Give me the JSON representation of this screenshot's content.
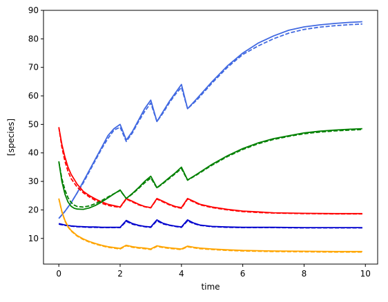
{
  "chart_data": {
    "type": "line",
    "xlabel": "time",
    "ylabel": "[species]",
    "xlim": [
      -0.5,
      10.4
    ],
    "ylim": [
      1,
      90
    ],
    "xticks": [
      0,
      2,
      4,
      6,
      8,
      10
    ],
    "yticks": [
      10,
      20,
      30,
      40,
      50,
      60,
      70,
      80,
      90
    ],
    "grid": false,
    "series": [
      {
        "color": "#4169e1",
        "linestyle": "solid",
        "x": [
          0,
          0.2,
          0.4,
          0.6,
          0.8,
          1.0,
          1.2,
          1.4,
          1.6,
          1.8,
          2.0,
          2.2,
          2.4,
          2.6,
          2.8,
          3.0,
          3.2,
          3.4,
          3.6,
          3.8,
          4.0,
          4.2,
          4.5,
          5.0,
          5.5,
          6.0,
          6.5,
          7.0,
          7.5,
          8.0,
          8.5,
          9.0,
          9.5,
          9.9
        ],
        "y": [
          17,
          19.5,
          22.5,
          26,
          30,
          34,
          38,
          42,
          46,
          48.5,
          50,
          44.5,
          47.5,
          51.5,
          55.5,
          58.5,
          51,
          54.5,
          58,
          61,
          64,
          55.5,
          59,
          65,
          70.5,
          75,
          78.5,
          81,
          83,
          84.2,
          84.9,
          85.4,
          85.8,
          86
        ]
      },
      {
        "color": "#4169e1",
        "linestyle": "dashed",
        "x": [
          0,
          0.2,
          0.4,
          0.6,
          0.8,
          1.0,
          1.2,
          1.4,
          1.6,
          1.8,
          2.0,
          2.2,
          2.4,
          2.6,
          2.8,
          3.0,
          3.2,
          3.4,
          3.6,
          3.8,
          4.0,
          4.2,
          4.5,
          5.0,
          5.5,
          6.0,
          6.5,
          7.0,
          7.5,
          8.0,
          8.5,
          9.0,
          9.5,
          9.9
        ],
        "y": [
          17,
          19.5,
          22.5,
          26,
          29.5,
          33.5,
          37.5,
          41.5,
          45,
          48,
          49,
          44,
          47,
          51,
          54.5,
          57.5,
          51,
          54,
          57.5,
          60.5,
          63,
          55.5,
          58.5,
          64.5,
          70,
          74.5,
          77.5,
          80,
          82,
          83.3,
          84.1,
          84.6,
          85,
          85.2
        ]
      },
      {
        "color": "#ff0000",
        "linestyle": "solid",
        "x": [
          0,
          0.1,
          0.2,
          0.3,
          0.4,
          0.6,
          0.8,
          1.0,
          1.2,
          1.4,
          1.6,
          1.8,
          2.0,
          2.2,
          2.4,
          2.6,
          2.8,
          3.0,
          3.2,
          3.4,
          3.6,
          3.8,
          4.0,
          4.2,
          4.4,
          4.6,
          5.0,
          5.5,
          6.0,
          6.5,
          7.0,
          8.0,
          9.0,
          9.9
        ],
        "y": [
          49,
          43,
          38.5,
          35,
          32.5,
          29,
          26.5,
          25,
          23.8,
          22.8,
          22,
          21.5,
          21,
          24,
          23,
          22,
          21.2,
          20.8,
          24,
          23,
          22,
          21.2,
          20.8,
          24,
          23,
          22,
          21,
          20.2,
          19.6,
          19.3,
          19,
          18.8,
          18.7,
          18.7
        ]
      },
      {
        "color": "#ff0000",
        "linestyle": "dashed",
        "x": [
          0,
          0.1,
          0.2,
          0.3,
          0.4,
          0.6,
          0.8,
          1.0,
          1.2,
          1.4,
          1.6,
          1.8,
          2.0,
          2.2,
          2.4,
          2.6,
          2.8,
          3.0,
          3.2,
          3.4,
          3.6,
          3.8,
          4.0,
          4.2,
          4.4,
          4.6,
          5.0,
          5.5,
          6.0,
          6.5,
          7.0,
          8.0,
          9.0,
          9.9
        ],
        "y": [
          49,
          42,
          37,
          33.5,
          31,
          28,
          26,
          24.5,
          23.3,
          22.3,
          21.6,
          21.2,
          20.9,
          23.8,
          22.8,
          21.8,
          21.1,
          20.7,
          23.8,
          22.8,
          21.8,
          21,
          20.6,
          23.8,
          22.8,
          21.8,
          20.8,
          20,
          19.4,
          19.1,
          18.9,
          18.7,
          18.6,
          18.6
        ]
      },
      {
        "color": "#008000",
        "linestyle": "solid",
        "x": [
          0,
          0.1,
          0.2,
          0.3,
          0.4,
          0.5,
          0.6,
          0.8,
          1.0,
          1.2,
          1.4,
          1.6,
          1.8,
          2.0,
          2.2,
          2.4,
          2.6,
          2.8,
          3.0,
          3.2,
          3.4,
          3.6,
          3.8,
          4.0,
          4.2,
          4.5,
          5.0,
          5.5,
          6.0,
          6.5,
          7.0,
          7.5,
          8.0,
          8.5,
          9.0,
          9.5,
          9.9
        ],
        "y": [
          37,
          30,
          25.5,
          22.8,
          21.3,
          20.6,
          20.3,
          20.2,
          20.7,
          21.6,
          22.8,
          24.2,
          25.6,
          27,
          24,
          25.8,
          27.8,
          30,
          31.8,
          27.8,
          29.5,
          31.3,
          33,
          35,
          30.5,
          32.5,
          36,
          39,
          41.5,
          43.5,
          45,
          46,
          47,
          47.6,
          48,
          48.3,
          48.5
        ]
      },
      {
        "color": "#008000",
        "linestyle": "dashed",
        "x": [
          0,
          0.1,
          0.2,
          0.3,
          0.4,
          0.5,
          0.6,
          0.8,
          1.0,
          1.2,
          1.4,
          1.6,
          1.8,
          2.0,
          2.2,
          2.4,
          2.6,
          2.8,
          3.0,
          3.2,
          3.4,
          3.6,
          3.8,
          4.0,
          4.2,
          4.5,
          5.0,
          5.5,
          6.0,
          6.5,
          7.0,
          7.5,
          8.0,
          8.5,
          9.0,
          9.5,
          9.9
        ],
        "y": [
          37,
          31,
          27,
          24.3,
          22.6,
          21.7,
          21.2,
          21,
          21.4,
          22.2,
          23.3,
          24.5,
          25.7,
          26.8,
          24,
          25.6,
          27.5,
          29.5,
          31.2,
          27.7,
          29.3,
          31,
          32.7,
          34.5,
          30.4,
          32.3,
          35.7,
          38.7,
          41.2,
          43.2,
          44.7,
          45.8,
          46.7,
          47.3,
          47.7,
          48,
          48.2
        ]
      },
      {
        "color": "#0000cd",
        "linestyle": "solid",
        "x": [
          0,
          0.2,
          0.4,
          0.6,
          0.8,
          1.0,
          1.2,
          1.4,
          1.6,
          1.8,
          2.0,
          2.2,
          2.4,
          2.6,
          2.8,
          3.0,
          3.2,
          3.4,
          3.6,
          3.8,
          4.0,
          4.2,
          4.4,
          4.6,
          5.0,
          5.5,
          6.0,
          7.0,
          8.0,
          9.0,
          9.9
        ],
        "y": [
          15.2,
          14.7,
          14.4,
          14.2,
          14.1,
          14,
          14,
          13.9,
          13.9,
          13.9,
          13.9,
          16.3,
          15.2,
          14.6,
          14.2,
          14,
          16.5,
          15.3,
          14.7,
          14.3,
          14,
          16.5,
          15.4,
          14.7,
          14.2,
          14,
          13.9,
          13.9,
          13.8,
          13.8,
          13.8
        ]
      },
      {
        "color": "#0000cd",
        "linestyle": "dashed",
        "x": [
          0,
          0.2,
          0.4,
          0.6,
          0.8,
          1.0,
          1.2,
          1.4,
          1.6,
          1.8,
          2.0,
          2.2,
          2.4,
          2.6,
          2.8,
          3.0,
          3.2,
          3.4,
          3.6,
          3.8,
          4.0,
          4.2,
          4.4,
          4.6,
          5.0,
          5.5,
          6.0,
          7.0,
          8.0,
          9.0,
          9.9
        ],
        "y": [
          15,
          14.6,
          14.3,
          14.1,
          14,
          13.9,
          13.9,
          13.8,
          13.8,
          13.8,
          13.8,
          16,
          15,
          14.5,
          14.1,
          13.9,
          16.2,
          15.1,
          14.6,
          14.2,
          13.9,
          16.2,
          15.2,
          14.6,
          14.1,
          13.9,
          13.8,
          13.8,
          13.7,
          13.7,
          13.7
        ]
      },
      {
        "color": "#ffa500",
        "linestyle": "solid",
        "x": [
          0,
          0.1,
          0.2,
          0.3,
          0.4,
          0.6,
          0.8,
          1.0,
          1.2,
          1.4,
          1.6,
          1.8,
          2.0,
          2.2,
          2.4,
          2.6,
          2.8,
          3.0,
          3.2,
          3.4,
          3.6,
          3.8,
          4.0,
          4.2,
          4.4,
          4.6,
          5.0,
          5.5,
          6.0,
          7.0,
          8.0,
          9.0,
          9.9
        ],
        "y": [
          24,
          19.5,
          16.3,
          14.2,
          12.8,
          11,
          9.8,
          8.9,
          8.2,
          7.6,
          7.1,
          6.8,
          6.5,
          7.6,
          7.1,
          6.8,
          6.6,
          6.3,
          7.4,
          7,
          6.7,
          6.5,
          6.3,
          7.3,
          6.9,
          6.6,
          6.3,
          6,
          5.8,
          5.6,
          5.5,
          5.4,
          5.4
        ]
      },
      {
        "color": "#ffa500",
        "linestyle": "dashed",
        "x": [
          0,
          0.1,
          0.2,
          0.3,
          0.4,
          0.6,
          0.8,
          1.0,
          1.2,
          1.4,
          1.6,
          1.8,
          2.0,
          2.2,
          2.4,
          2.6,
          2.8,
          3.0,
          3.2,
          3.4,
          3.6,
          3.8,
          4.0,
          4.2,
          4.4,
          4.6,
          5.0,
          5.5,
          6.0,
          7.0,
          8.0,
          9.0,
          9.9
        ],
        "y": [
          24,
          19.3,
          16.1,
          14,
          12.6,
          10.8,
          9.6,
          8.7,
          8,
          7.4,
          6.9,
          6.6,
          6.3,
          7.4,
          6.9,
          6.6,
          6.4,
          6.1,
          7.2,
          6.8,
          6.5,
          6.3,
          6.1,
          7.1,
          6.7,
          6.4,
          6.1,
          5.8,
          5.6,
          5.4,
          5.3,
          5.2,
          5.2
        ]
      }
    ]
  }
}
